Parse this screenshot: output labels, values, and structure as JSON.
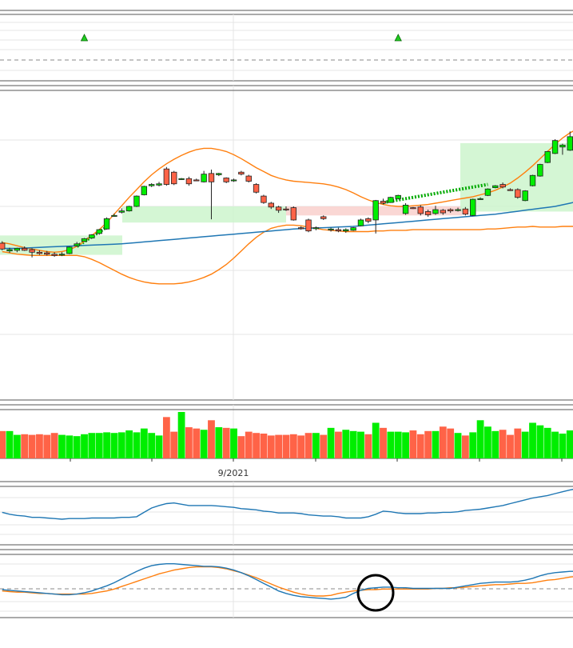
{
  "colors": {
    "up": "#00ee00",
    "down": "#ff6347",
    "candle_outline": "#222222",
    "ma": "#1f77b4",
    "band": "#ff7f0e",
    "signal": "#ff7f0e",
    "macd": "#1f77b4",
    "zone_green": "#ccf5cc",
    "zone_red": "#f9d0cc",
    "trend_dash": "#00aa00",
    "marker": "#22cc22",
    "grid": "#e6e6e6",
    "panel_border": "#555555",
    "circle": "#000000"
  },
  "chart_data": {
    "type": "candlestick",
    "x_tick_labels": [
      "9/2021"
    ],
    "signal_markers": [
      11,
      53
    ],
    "candles": [
      [
        34.3,
        34.6,
        33.2,
        33.4
      ],
      [
        33.1,
        33.6,
        32.8,
        33.3
      ],
      [
        33.2,
        33.6,
        32.9,
        33.5
      ],
      [
        33.5,
        33.8,
        33.1,
        33.2
      ],
      [
        33.3,
        33.5,
        32.1,
        32.9
      ],
      [
        32.9,
        33.2,
        32.5,
        32.7
      ],
      [
        32.8,
        33.1,
        32.4,
        32.6
      ],
      [
        32.6,
        32.9,
        32.2,
        32.4
      ],
      [
        32.6,
        32.9,
        32.3,
        32.6
      ],
      [
        32.7,
        33.8,
        32.6,
        33.7
      ],
      [
        33.9,
        34.5,
        33.8,
        34.2
      ],
      [
        34.6,
        35.1,
        34.5,
        35.0
      ],
      [
        35.1,
        35.7,
        35.0,
        35.6
      ],
      [
        35.8,
        36.5,
        35.6,
        36.4
      ],
      [
        36.5,
        38.3,
        36.4,
        38.1
      ],
      [
        38.6,
        38.9,
        38.4,
        38.6
      ],
      [
        39.1,
        39.7,
        38.9,
        39.3
      ],
      [
        39.3,
        40.1,
        39.2,
        40.0
      ],
      [
        40.0,
        41.7,
        39.9,
        41.6
      ],
      [
        41.8,
        43.2,
        41.7,
        43.1
      ],
      [
        43.2,
        43.6,
        43.0,
        43.4
      ],
      [
        43.3,
        43.8,
        43.1,
        43.5
      ],
      [
        45.8,
        46.1,
        43.2,
        43.4
      ],
      [
        45.3,
        45.5,
        43.3,
        43.5
      ],
      [
        44.2,
        44.4,
        44.1,
        44.3
      ],
      [
        44.3,
        44.6,
        43.2,
        43.5
      ],
      [
        44.1,
        44.3,
        43.9,
        44.0
      ],
      [
        43.8,
        45.5,
        43.7,
        45.0
      ],
      [
        45.1,
        45.7,
        38.0,
        43.8
      ],
      [
        44.9,
        45.2,
        44.7,
        45.1
      ],
      [
        44.4,
        44.5,
        43.6,
        43.8
      ],
      [
        44.0,
        44.3,
        43.8,
        44.1
      ],
      [
        45.3,
        45.5,
        44.8,
        45.0
      ],
      [
        44.7,
        44.9,
        43.7,
        43.9
      ],
      [
        43.4,
        43.6,
        42.0,
        42.2
      ],
      [
        41.6,
        41.8,
        40.4,
        40.6
      ],
      [
        40.5,
        40.7,
        39.6,
        39.9
      ],
      [
        39.9,
        40.1,
        39.0,
        39.4
      ],
      [
        39.6,
        40.0,
        39.3,
        39.5
      ],
      [
        39.8,
        40.0,
        37.8,
        37.9
      ],
      [
        36.7,
        36.9,
        36.4,
        36.6
      ],
      [
        37.9,
        38.1,
        36.0,
        36.2
      ],
      [
        36.6,
        36.9,
        36.3,
        36.7
      ],
      [
        38.4,
        38.6,
        37.9,
        38.1
      ],
      [
        36.4,
        36.7,
        36.1,
        36.5
      ],
      [
        36.4,
        36.7,
        36.0,
        36.2
      ],
      [
        36.2,
        36.6,
        35.9,
        36.4
      ],
      [
        36.3,
        36.8,
        36.2,
        36.7
      ],
      [
        37.0,
        38.1,
        36.9,
        37.9
      ],
      [
        38.1,
        38.3,
        37.4,
        37.7
      ],
      [
        37.9,
        41.0,
        35.8,
        40.9
      ],
      [
        40.8,
        41.2,
        40.3,
        40.5
      ],
      [
        40.6,
        41.5,
        40.6,
        41.4
      ],
      [
        41.2,
        41.8,
        41.1,
        41.7
      ],
      [
        38.9,
        40.5,
        38.7,
        40.2
      ],
      [
        39.8,
        39.9,
        39.6,
        39.7
      ],
      [
        39.9,
        40.2,
        38.6,
        38.9
      ],
      [
        39.2,
        39.5,
        38.4,
        38.7
      ],
      [
        38.9,
        40.1,
        38.7,
        39.5
      ],
      [
        39.4,
        39.6,
        38.7,
        39.0
      ],
      [
        39.5,
        39.7,
        39.0,
        39.3
      ],
      [
        39.4,
        39.8,
        39.2,
        39.5
      ],
      [
        39.6,
        39.9,
        38.6,
        38.8
      ],
      [
        38.6,
        41.2,
        38.5,
        41.1
      ],
      [
        41.2,
        41.4,
        41.0,
        41.2
      ],
      [
        41.7,
        42.8,
        41.6,
        42.7
      ],
      [
        42.9,
        43.3,
        42.8,
        43.2
      ],
      [
        43.4,
        43.7,
        42.8,
        43.0
      ],
      [
        42.6,
        42.8,
        42.4,
        42.5
      ],
      [
        42.6,
        42.8,
        41.2,
        41.4
      ],
      [
        40.9,
        42.5,
        40.8,
        42.4
      ],
      [
        43.2,
        44.9,
        43.1,
        44.8
      ],
      [
        44.7,
        46.6,
        44.6,
        46.5
      ],
      [
        46.8,
        48.6,
        46.7,
        48.5
      ],
      [
        48.2,
        50.4,
        48.1,
        50.2
      ],
      [
        49.2,
        49.7,
        48.0,
        49.5
      ],
      [
        48.7,
        51.6,
        48.6,
        50.8
      ],
      [
        51.2,
        51.5,
        50.0,
        50.3
      ]
    ],
    "volume": [
      43,
      43,
      37,
      38,
      37,
      38,
      37,
      40,
      37,
      36,
      35,
      38,
      40,
      40,
      41,
      40,
      41,
      44,
      41,
      47,
      40,
      36,
      65,
      42,
      73,
      49,
      47,
      45,
      60,
      49,
      48,
      47,
      35,
      42,
      40,
      39,
      36,
      37,
      37,
      38,
      36,
      40,
      40,
      37,
      48,
      42,
      45,
      43,
      42,
      38,
      56,
      48,
      42,
      42,
      41,
      44,
      38,
      43,
      43,
      50,
      47,
      40,
      36,
      41,
      60,
      50,
      43,
      45,
      37,
      47,
      42,
      56,
      52,
      48,
      42,
      39,
      44,
      48
    ],
    "ma": [
      33.5,
      33.5,
      33.5,
      33.55,
      33.6,
      33.65,
      33.7,
      33.75,
      33.8,
      33.85,
      33.9,
      33.95,
      34.0,
      34.05,
      34.1,
      34.15,
      34.2,
      34.3,
      34.4,
      34.5,
      34.6,
      34.7,
      34.8,
      34.9,
      35.0,
      35.1,
      35.2,
      35.3,
      35.4,
      35.5,
      35.6,
      35.7,
      35.8,
      35.9,
      36.0,
      36.1,
      36.2,
      36.3,
      36.4,
      36.5,
      36.55,
      36.6,
      36.65,
      36.7,
      36.75,
      36.8,
      36.85,
      36.9,
      37.0,
      37.1,
      37.2,
      37.3,
      37.4,
      37.5,
      37.6,
      37.7,
      37.8,
      37.9,
      38.0,
      38.1,
      38.2,
      38.3,
      38.4,
      38.5,
      38.6,
      38.7,
      38.8,
      38.95,
      39.1,
      39.25,
      39.4,
      39.55,
      39.7,
      39.85,
      40.0,
      40.25,
      40.5,
      40.75
    ],
    "band_upper": [
      34.4,
      34.2,
      33.9,
      33.6,
      33.4,
      33.2,
      33.0,
      32.9,
      33.0,
      33.3,
      33.8,
      34.6,
      35.5,
      36.4,
      37.5,
      38.8,
      40.1,
      41.4,
      42.6,
      43.8,
      44.9,
      45.8,
      46.6,
      47.3,
      47.9,
      48.4,
      48.8,
      49.0,
      49.0,
      48.8,
      48.5,
      48.0,
      47.4,
      46.7,
      46.0,
      45.4,
      44.8,
      44.4,
      44.1,
      43.9,
      43.8,
      43.7,
      43.6,
      43.5,
      43.3,
      43.0,
      42.6,
      42.1,
      41.5,
      41.0,
      40.6,
      40.3,
      40.1,
      40.0,
      40.0,
      40.1,
      40.2,
      40.3,
      40.5,
      40.7,
      40.9,
      41.1,
      41.3,
      41.5,
      41.8,
      42.1,
      42.5,
      43.0,
      43.6,
      44.4,
      45.3,
      46.3,
      47.4,
      48.5,
      49.6,
      50.6,
      51.4,
      52.0
    ],
    "band_lower": [
      33.0,
      32.8,
      32.6,
      32.5,
      32.4,
      32.4,
      32.4,
      32.4,
      32.4,
      32.4,
      32.4,
      32.2,
      31.8,
      31.3,
      30.7,
      30.1,
      29.5,
      29.0,
      28.6,
      28.3,
      28.1,
      28.0,
      28.0,
      28.0,
      28.1,
      28.3,
      28.6,
      29.0,
      29.5,
      30.2,
      31.0,
      32.0,
      33.1,
      34.2,
      35.2,
      36.0,
      36.6,
      36.9,
      37.1,
      37.1,
      37.0,
      36.8,
      36.6,
      36.4,
      36.3,
      36.2,
      36.1,
      36.1,
      36.1,
      36.1,
      36.2,
      36.2,
      36.3,
      36.3,
      36.3,
      36.4,
      36.4,
      36.4,
      36.4,
      36.4,
      36.4,
      36.4,
      36.4,
      36.4,
      36.4,
      36.5,
      36.5,
      36.6,
      36.7,
      36.8,
      36.8,
      36.9,
      36.8,
      36.8,
      36.8,
      36.9,
      36.9,
      36.9
    ],
    "panel3_line": [
      0.52,
      0.49,
      0.47,
      0.46,
      0.44,
      0.44,
      0.43,
      0.42,
      0.41,
      0.42,
      0.42,
      0.42,
      0.43,
      0.43,
      0.43,
      0.43,
      0.44,
      0.44,
      0.45,
      0.52,
      0.59,
      0.63,
      0.66,
      0.67,
      0.65,
      0.63,
      0.63,
      0.63,
      0.63,
      0.62,
      0.61,
      0.6,
      0.58,
      0.57,
      0.56,
      0.54,
      0.53,
      0.51,
      0.51,
      0.51,
      0.5,
      0.48,
      0.47,
      0.46,
      0.46,
      0.45,
      0.43,
      0.43,
      0.43,
      0.45,
      0.49,
      0.54,
      0.53,
      0.51,
      0.5,
      0.5,
      0.5,
      0.51,
      0.51,
      0.52,
      0.52,
      0.53,
      0.55,
      0.56,
      0.57,
      0.59,
      0.61,
      0.63,
      0.66,
      0.69,
      0.72,
      0.75,
      0.77,
      0.79,
      0.82,
      0.85,
      0.88,
      0.9
    ],
    "macd": [
      0.48,
      0.47,
      0.46,
      0.45,
      0.44,
      0.43,
      0.42,
      0.41,
      0.4,
      0.4,
      0.41,
      0.43,
      0.46,
      0.5,
      0.54,
      0.59,
      0.65,
      0.71,
      0.77,
      0.82,
      0.86,
      0.88,
      0.89,
      0.89,
      0.88,
      0.87,
      0.86,
      0.85,
      0.85,
      0.84,
      0.82,
      0.79,
      0.75,
      0.7,
      0.64,
      0.58,
      0.52,
      0.46,
      0.42,
      0.39,
      0.37,
      0.36,
      0.35,
      0.34,
      0.33,
      0.34,
      0.36,
      0.42,
      0.47,
      0.5,
      0.51,
      0.52,
      0.52,
      0.51,
      0.51,
      0.5,
      0.5,
      0.5,
      0.5,
      0.5,
      0.5,
      0.52,
      0.54,
      0.56,
      0.58,
      0.59,
      0.6,
      0.6,
      0.6,
      0.61,
      0.63,
      0.66,
      0.7,
      0.73,
      0.75,
      0.76,
      0.77,
      0.77
    ],
    "signal": [
      0.46,
      0.45,
      0.44,
      0.44,
      0.43,
      0.42,
      0.42,
      0.41,
      0.41,
      0.41,
      0.41,
      0.41,
      0.42,
      0.44,
      0.46,
      0.49,
      0.53,
      0.57,
      0.61,
      0.65,
      0.69,
      0.73,
      0.76,
      0.79,
      0.81,
      0.83,
      0.84,
      0.84,
      0.84,
      0.83,
      0.81,
      0.78,
      0.75,
      0.71,
      0.67,
      0.62,
      0.57,
      0.52,
      0.48,
      0.44,
      0.41,
      0.39,
      0.38,
      0.38,
      0.39,
      0.42,
      0.44,
      0.46,
      0.47,
      0.48,
      0.48,
      0.49,
      0.49,
      0.49,
      0.49,
      0.49,
      0.49,
      0.49,
      0.5,
      0.5,
      0.51,
      0.51,
      0.52,
      0.53,
      0.54,
      0.55,
      0.56,
      0.56,
      0.57,
      0.58,
      0.58,
      0.59,
      0.61,
      0.63,
      0.64,
      0.66,
      0.68,
      0.69
    ]
  }
}
